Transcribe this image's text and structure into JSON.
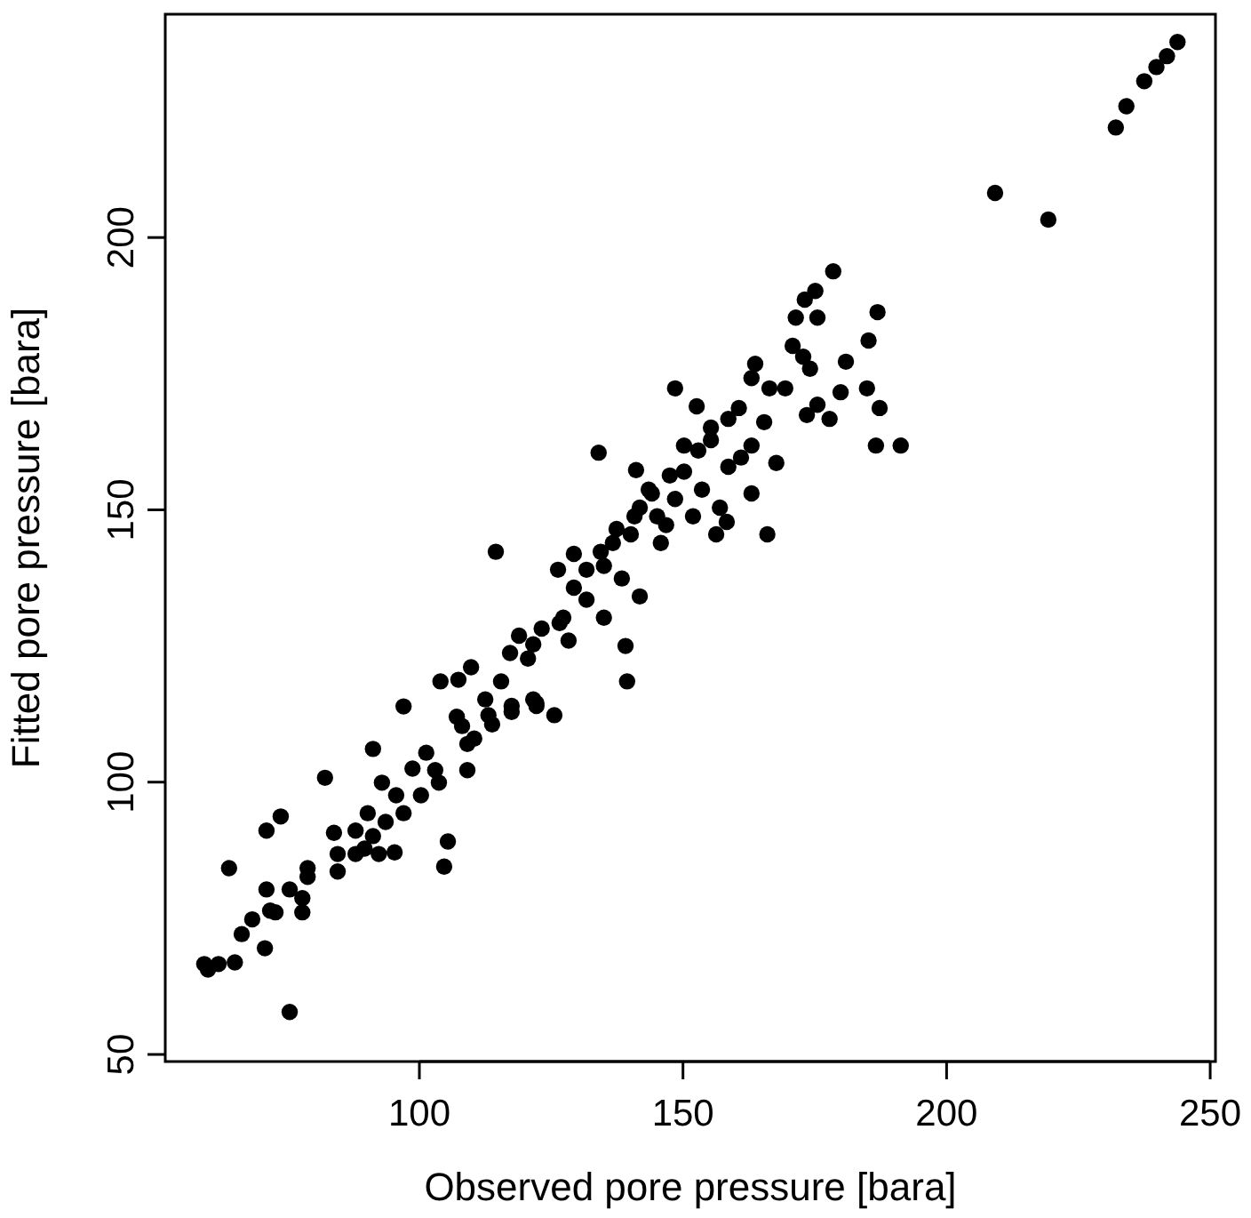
{
  "chart_data": {
    "type": "scatter",
    "xlabel": "Observed pore pressure [bara]",
    "ylabel": "Fitted pore pressure [bara]",
    "xlim": [
      51.8,
      251
    ],
    "ylim": [
      48.7,
      241
    ],
    "xticks": [
      100,
      150,
      200,
      250
    ],
    "yticks": [
      50,
      100,
      150,
      200
    ],
    "grid": false,
    "marker": "circle",
    "series": [
      {
        "color": "#000000",
        "x": [
          232.1,
          234.1,
          237.5,
          239.8,
          241.8,
          243.8,
          209.2,
          219.3,
          178.5,
          175.1,
          173.1,
          171.4,
          175.5,
          186.9,
          185.2,
          170.8,
          172.8,
          174.1,
          180.9,
          179.9,
          184.9,
          187.3,
          175.5,
          173.5,
          177.8,
          186.6,
          191.3,
          163.7,
          163.0,
          166.4,
          169.4,
          148.5,
          152.6,
          160.6,
          165.4,
          167.7,
          166.0,
          158.3,
          156.3,
          163.0,
          155.3,
          152.9,
          161.0,
          163.0,
          150.2,
          153.6,
          157.0,
          151.9,
          148.5,
          158.6,
          146.8,
          145.8,
          134.0,
          141.1,
          114.5,
          129.3,
          126.3,
          129.3,
          134.4,
          137.4,
          140.8,
          144.1,
          147.5,
          139.1,
          139.4,
          141.8,
          135.0,
          131.7,
          127.3,
          126.6,
          123.2,
          118.9,
          117.2,
          120.6,
          128.3,
          115.5,
          117.5,
          121.6,
          122.2,
          125.6,
          109.8,
          107.4,
          104.0,
          112.5,
          113.1,
          97.0,
          107.1,
          108.1,
          110.4,
          101.3,
          98.7,
          103.0,
          109.1,
          109.1,
          113.8,
          117.5,
          122.2,
          91.2,
          103.7,
          100.3,
          97.0,
          95.6,
          92.9,
          82.1,
          90.2,
          93.6,
          87.9,
          83.8,
          91.2,
          89.6,
          84.5,
          87.9,
          92.3,
          95.3,
          84.5,
          73.7,
          71.0,
          105.4,
          104.7,
          63.9,
          78.8,
          78.8,
          77.8,
          75.4,
          71.0,
          72.7,
          71.7,
          68.3,
          77.8,
          66.3,
          70.7,
          59.2,
          59.9,
          61.9,
          65.0,
          75.4,
          121.6,
          141.8,
          145.1,
          143.5,
          140.1,
          136.7,
          135.0,
          138.4,
          131.7,
          150.2,
          155.3,
          158.6
        ],
        "values": [
          220.2,
          224.1,
          228.7,
          231.3,
          233.3,
          235.9,
          208.2,
          203.3,
          193.8,
          190.2,
          188.6,
          185.3,
          185.3,
          186.3,
          181.1,
          180.1,
          178.1,
          175.9,
          177.2,
          171.6,
          172.3,
          168.7,
          169.3,
          167.4,
          166.7,
          161.8,
          161.8,
          176.8,
          174.2,
          172.3,
          172.3,
          172.3,
          169.0,
          168.7,
          166.1,
          158.6,
          145.5,
          147.8,
          145.5,
          153.0,
          162.8,
          160.9,
          159.6,
          161.8,
          157.0,
          153.7,
          150.4,
          148.8,
          152.0,
          157.9,
          147.2,
          143.9,
          160.5,
          157.3,
          142.3,
          141.9,
          139.0,
          135.7,
          142.3,
          146.5,
          148.8,
          153.0,
          156.3,
          125.0,
          118.5,
          134.1,
          130.2,
          133.5,
          130.2,
          129.2,
          128.2,
          126.9,
          123.7,
          122.7,
          126.0,
          118.5,
          114.0,
          115.2,
          114.0,
          112.3,
          121.1,
          118.8,
          118.5,
          115.2,
          112.3,
          113.9,
          112.0,
          110.3,
          108.0,
          105.4,
          102.5,
          102.2,
          102.2,
          107.0,
          110.6,
          112.9,
          114.5,
          106.1,
          99.9,
          97.6,
          94.3,
          97.6,
          99.9,
          100.8,
          94.3,
          92.7,
          91.1,
          90.7,
          90.1,
          87.8,
          86.8,
          86.8,
          86.8,
          87.1,
          83.6,
          93.7,
          91.1,
          89.1,
          84.5,
          84.2,
          84.2,
          82.6,
          78.7,
          80.3,
          80.3,
          76.1,
          76.4,
          74.8,
          76.1,
          72.1,
          69.5,
          66.6,
          65.6,
          66.6,
          66.9,
          57.8,
          125.3,
          150.4,
          148.8,
          153.7,
          145.5,
          143.9,
          139.7,
          137.4,
          139.0,
          161.8,
          165.1,
          166.7
        ]
      }
    ]
  }
}
